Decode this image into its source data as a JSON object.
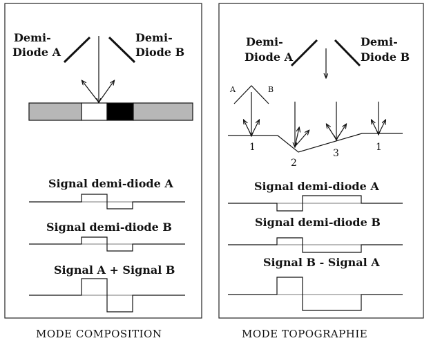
{
  "left_panel": {
    "diode_a_line1": "Demi-",
    "diode_a_line2": "Diode A",
    "diode_b_line1": "Demi-",
    "diode_b_line2": "Diode B",
    "signal_a": "Signal demi-diode A",
    "signal_b": "Signal demi-diode B",
    "signal_sum": "Signal A + Signal B",
    "caption": "MODE COMPOSITION",
    "sample_colors": [
      "#b7b7b7",
      "#ffffff",
      "#000000",
      "#b7b7b7"
    ]
  },
  "right_panel": {
    "diode_a_line1": "Demi-",
    "diode_a_line2": "Diode A",
    "diode_b_line1": "Demi-",
    "diode_b_line2": "Diode B",
    "inset_a": "A",
    "inset_b": "B",
    "point_1_left": "1",
    "point_2": "2",
    "point_3": "3",
    "point_1_right": "1",
    "signal_a": "Signal demi-diode A",
    "signal_b": "Signal demi-diode B",
    "signal_diff": "Signal B - Signal A",
    "caption": "MODE TOPOGRAPHIE"
  }
}
